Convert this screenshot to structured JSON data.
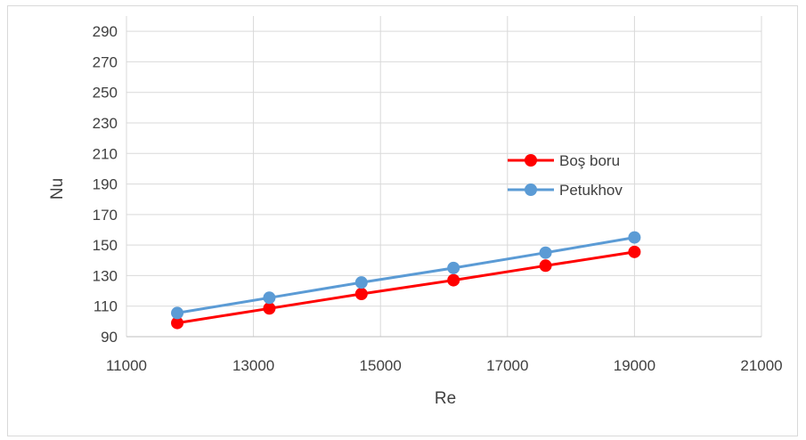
{
  "chart_data": {
    "type": "scatter",
    "title": "",
    "xlabel": "Re",
    "ylabel": "Nu",
    "xlim": [
      11000,
      21000
    ],
    "ylim": [
      90,
      300
    ],
    "xticks": [
      "11000",
      "13000",
      "15000",
      "17000",
      "19000",
      "21000"
    ],
    "yticks": [
      "90",
      "110",
      "130",
      "150",
      "170",
      "190",
      "210",
      "230",
      "250",
      "270",
      "290"
    ],
    "grid": true,
    "legend_position": "right",
    "series": [
      {
        "name": "Boş boru",
        "color": "#ff0000",
        "x": [
          11800,
          13250,
          14700,
          16150,
          17600,
          19000
        ],
        "y": [
          99,
          108.5,
          118,
          127,
          136.5,
          145.5
        ]
      },
      {
        "name": "Petukhov",
        "color": "#5b9bd5",
        "x": [
          11800,
          13250,
          14700,
          16150,
          17600,
          19000
        ],
        "y": [
          105.5,
          115.5,
          125.5,
          135,
          145,
          155
        ]
      }
    ]
  }
}
